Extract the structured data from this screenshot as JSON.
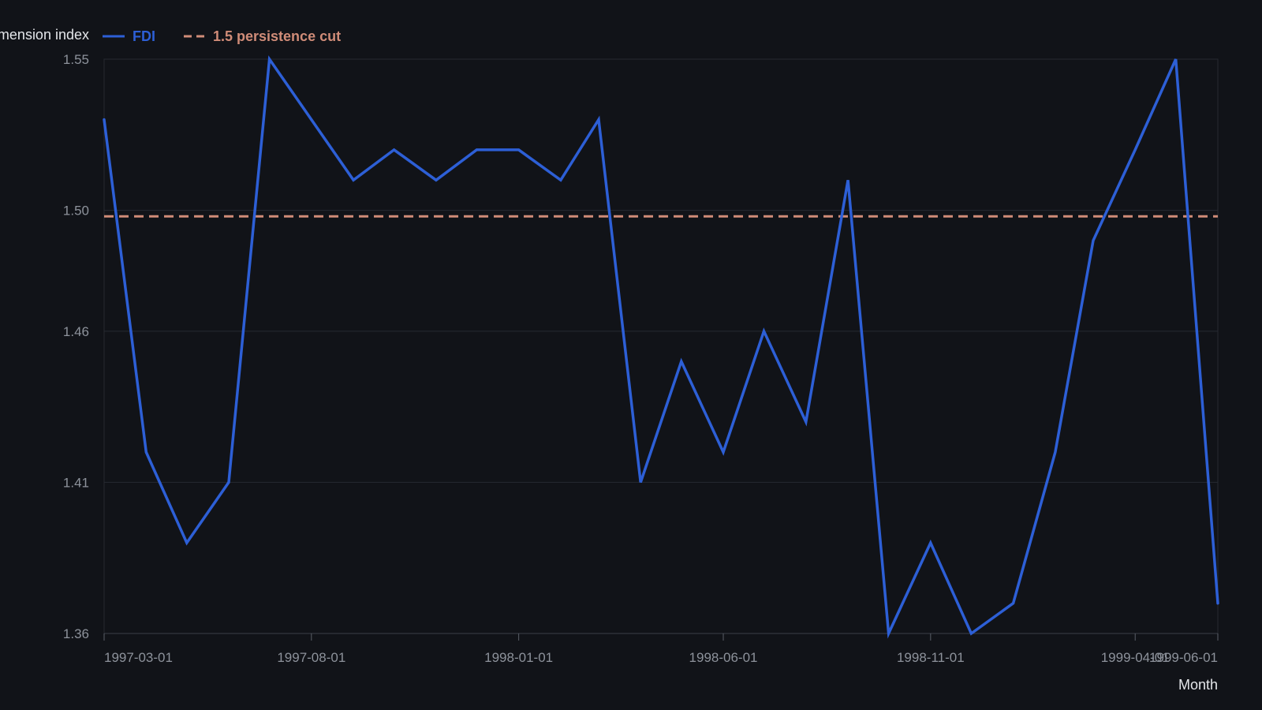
{
  "chart_data": {
    "type": "line",
    "title": "",
    "xlabel": "Month",
    "ylabel": "mension index",
    "x_ticks": [
      "1997-03-01",
      "1997-08-01",
      "1998-01-01",
      "1998-06-01",
      "1998-11-01",
      "1999-04-01",
      "1999-06-01"
    ],
    "y_ticks": [
      "1.36",
      "1.41",
      "1.46",
      "1.50",
      "1.55"
    ],
    "ylim": [
      1.36,
      1.55
    ],
    "grid": true,
    "legend_position": "top-left",
    "x": [
      "1997-03-01",
      "1997-04-01",
      "1997-05-01",
      "1997-06-01",
      "1997-07-01",
      "1997-08-01",
      "1997-09-01",
      "1997-10-01",
      "1997-11-01",
      "1997-12-01",
      "1998-01-01",
      "1998-02-01",
      "1998-03-01",
      "1998-04-01",
      "1998-05-01",
      "1998-06-01",
      "1998-07-01",
      "1998-08-01",
      "1998-09-01",
      "1998-10-01",
      "1998-11-01",
      "1998-12-01",
      "1999-01-01",
      "1999-02-01",
      "1999-03-01",
      "1999-04-01",
      "1999-05-01",
      "1999-06-01"
    ],
    "series": [
      {
        "name": "FDI",
        "color": "#2d5fd6",
        "values": [
          1.53,
          1.42,
          1.39,
          1.41,
          1.55,
          1.53,
          1.51,
          1.52,
          1.51,
          1.52,
          1.52,
          1.51,
          1.53,
          1.41,
          1.45,
          1.42,
          1.46,
          1.43,
          1.51,
          1.36,
          1.39,
          1.36,
          1.37,
          1.42,
          1.49,
          1.52,
          1.55,
          1.37
        ]
      }
    ],
    "reference_line": {
      "label": "1.5 persistence cut",
      "value": 1.498,
      "color": "#d08c78"
    }
  }
}
